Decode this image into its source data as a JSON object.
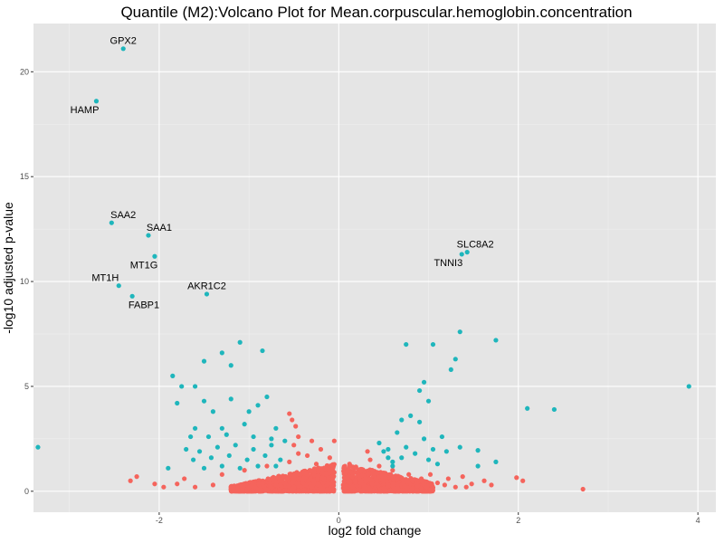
{
  "chart_data": {
    "type": "scatter",
    "title": "Quantile (M2):Volcano Plot for Mean.corpuscular.hemoglobin.concentration",
    "xlabel": "log2 fold change",
    "ylabel": "-log10 adjusted p-value",
    "xlim": [
      -3.4,
      4.2
    ],
    "ylim": [
      -1.0,
      22.3
    ],
    "x_ticks": [
      -2,
      0,
      2,
      4
    ],
    "y_ticks": [
      0,
      5,
      10,
      15,
      20
    ],
    "x_tick_labels": [
      "-2",
      "0",
      "2",
      "4"
    ],
    "y_tick_labels": [
      "0",
      "5",
      "10",
      "15",
      "20"
    ],
    "grid": true,
    "legend": "none",
    "colors": {
      "significant": "#1fb6bc",
      "not_significant": "#f5645c",
      "panel_bg": "#e5e5e5",
      "grid_major": "#ffffff",
      "grid_minor": "#f0f0f0"
    },
    "labeled_points": [
      {
        "label": "GPX2",
        "x": -2.4,
        "y": 21.1,
        "label_x": -2.4,
        "label_y": 21.5
      },
      {
        "label": "HAMP",
        "x": -2.7,
        "y": 18.6,
        "label_x": -2.83,
        "label_y": 18.2
      },
      {
        "label": "SAA2",
        "x": -2.53,
        "y": 12.8,
        "label_x": -2.4,
        "label_y": 13.2
      },
      {
        "label": "SAA1",
        "x": -2.12,
        "y": 12.2,
        "label_x": -2.0,
        "label_y": 12.6
      },
      {
        "label": "MT1G",
        "x": -2.05,
        "y": 11.2,
        "label_x": -2.17,
        "label_y": 10.8
      },
      {
        "label": "MT1H",
        "x": -2.45,
        "y": 9.8,
        "label_x": -2.6,
        "label_y": 10.2
      },
      {
        "label": "FABP1",
        "x": -2.3,
        "y": 9.3,
        "label_x": -2.17,
        "label_y": 8.9
      },
      {
        "label": "AKR1C2",
        "x": -1.47,
        "y": 9.4,
        "label_x": -1.47,
        "label_y": 9.8
      },
      {
        "label": "SLC8A2",
        "x": 1.43,
        "y": 11.4,
        "label_x": 1.52,
        "label_y": 11.8
      },
      {
        "label": "TNNI3",
        "x": 1.37,
        "y": 11.3,
        "label_x": 1.22,
        "label_y": 10.9
      }
    ],
    "significant_points": [
      [
        -3.35,
        2.1
      ],
      [
        3.9,
        5.0
      ],
      [
        2.4,
        3.9
      ],
      [
        2.1,
        3.95
      ],
      [
        1.75,
        7.2
      ],
      [
        1.35,
        7.6
      ],
      [
        1.05,
        7.0
      ],
      [
        0.75,
        7.0
      ],
      [
        1.3,
        6.3
      ],
      [
        1.25,
        5.8
      ],
      [
        0.95,
        5.2
      ],
      [
        0.9,
        4.8
      ],
      [
        1.0,
        4.3
      ],
      [
        1.75,
        1.4
      ],
      [
        1.55,
        1.95
      ],
      [
        1.55,
        1.2
      ],
      [
        1.35,
        2.1
      ],
      [
        -1.1,
        7.1
      ],
      [
        -0.85,
        6.7
      ],
      [
        -1.3,
        6.6
      ],
      [
        -1.5,
        6.2
      ],
      [
        -1.2,
        6.0
      ],
      [
        -1.85,
        5.5
      ],
      [
        -1.75,
        5.0
      ],
      [
        -1.6,
        5.0
      ],
      [
        -0.8,
        4.5
      ],
      [
        -1.8,
        4.2
      ],
      [
        -1.5,
        4.3
      ],
      [
        -1.2,
        4.4
      ],
      [
        -0.9,
        4.1
      ],
      [
        -1.4,
        3.8
      ],
      [
        -1.0,
        3.8
      ],
      [
        -1.6,
        3.0
      ],
      [
        -1.3,
        3.0
      ],
      [
        -1.05,
        3.2
      ],
      [
        -0.7,
        3.0
      ],
      [
        -1.65,
        2.6
      ],
      [
        -1.45,
        2.6
      ],
      [
        -1.25,
        2.7
      ],
      [
        -0.95,
        2.6
      ],
      [
        -0.75,
        2.5
      ],
      [
        -1.7,
        2.0
      ],
      [
        -1.55,
        1.9
      ],
      [
        -1.35,
        2.1
      ],
      [
        -1.15,
        2.2
      ],
      [
        -0.95,
        2.0
      ],
      [
        -0.75,
        2.2
      ],
      [
        -0.6,
        2.4
      ],
      [
        -1.62,
        1.5
      ],
      [
        -1.42,
        1.6
      ],
      [
        -1.22,
        1.7
      ],
      [
        -1.02,
        1.5
      ],
      [
        -0.82,
        1.7
      ],
      [
        -0.65,
        1.5
      ],
      [
        -1.5,
        1.1
      ],
      [
        -1.3,
        1.2
      ],
      [
        -1.1,
        1.1
      ],
      [
        -0.9,
        1.2
      ],
      [
        -0.7,
        1.2
      ],
      [
        -1.9,
        1.1
      ],
      [
        0.45,
        2.3
      ],
      [
        0.5,
        1.9
      ],
      [
        0.55,
        1.6
      ],
      [
        0.65,
        2.8
      ],
      [
        0.7,
        3.4
      ],
      [
        0.8,
        3.6
      ],
      [
        0.9,
        3.3
      ],
      [
        0.6,
        1.4
      ],
      [
        0.75,
        2.1
      ],
      [
        0.85,
        1.8
      ],
      [
        1.0,
        1.5
      ],
      [
        1.05,
        2.0
      ],
      [
        1.15,
        2.6
      ],
      [
        1.1,
        1.3
      ],
      [
        0.95,
        2.5
      ],
      [
        0.7,
        1.6
      ],
      [
        0.55,
        2.0
      ],
      [
        1.2,
        1.9
      ],
      [
        0.6,
        1.2
      ]
    ],
    "nonsignificant_points": [
      [
        2.72,
        0.1
      ],
      [
        2.05,
        0.5
      ],
      [
        1.98,
        0.65
      ],
      [
        1.7,
        0.3
      ],
      [
        1.62,
        0.5
      ],
      [
        1.48,
        0.35
      ],
      [
        1.3,
        0.2
      ],
      [
        1.1,
        0.4
      ],
      [
        0.92,
        0.6
      ],
      [
        0.78,
        0.8
      ],
      [
        0.6,
        1.0
      ],
      [
        0.45,
        1.2
      ],
      [
        0.35,
        1.5
      ],
      [
        0.25,
        1.0
      ],
      [
        0.15,
        0.7
      ],
      [
        0.05,
        0.3
      ],
      [
        -2.32,
        0.5
      ],
      [
        -2.25,
        0.7
      ],
      [
        -2.05,
        0.35
      ],
      [
        -1.95,
        0.2
      ],
      [
        -1.8,
        0.35
      ],
      [
        -1.6,
        0.2
      ],
      [
        -1.4,
        0.3
      ],
      [
        -1.2,
        0.2
      ],
      [
        -1.0,
        0.2
      ],
      [
        -0.85,
        0.35
      ],
      [
        -0.65,
        0.3
      ],
      [
        -0.5,
        0.2
      ],
      [
        -0.3,
        0.2
      ],
      [
        -0.1,
        0.1
      ],
      [
        -1.72,
        0.6
      ],
      [
        -1.3,
        0.8
      ],
      [
        -1.05,
        1.0
      ],
      [
        -0.8,
        1.2
      ],
      [
        -0.55,
        1.4
      ],
      [
        -0.45,
        1.8
      ],
      [
        -0.5,
        2.2
      ],
      [
        -0.45,
        2.6
      ],
      [
        -0.48,
        3.1
      ],
      [
        -0.52,
        3.4
      ],
      [
        -0.55,
        3.7
      ],
      [
        -0.35,
        1.7
      ],
      [
        -0.3,
        2.4
      ],
      [
        -0.25,
        1.3
      ],
      [
        -0.2,
        2.0
      ],
      [
        -0.15,
        1.1
      ],
      [
        -0.1,
        1.6
      ],
      [
        -0.05,
        2.4
      ],
      [
        -0.05,
        0.9
      ],
      [
        0.12,
        1.3
      ],
      [
        0.18,
        0.5
      ],
      [
        0.28,
        0.3
      ],
      [
        0.32,
        1.9
      ],
      [
        0.4,
        0.8
      ],
      [
        0.5,
        0.5
      ],
      [
        0.55,
        0.3
      ],
      [
        0.65,
        0.6
      ],
      [
        0.72,
        0.4
      ],
      [
        0.82,
        0.5
      ],
      [
        0.88,
        0.25
      ],
      [
        0.98,
        0.2
      ],
      [
        1.02,
        0.8
      ],
      [
        1.18,
        0.3
      ],
      [
        1.22,
        0.6
      ],
      [
        1.38,
        0.7
      ],
      [
        1.42,
        0.2
      ]
    ],
    "ns_cluster": {
      "left": {
        "x_min": -1.2,
        "x_max": -0.05,
        "y_max": 1.3,
        "count": 1000
      },
      "right": {
        "x_min": 0.05,
        "x_max": 1.05,
        "y_max": 1.3,
        "count": 950
      }
    }
  }
}
